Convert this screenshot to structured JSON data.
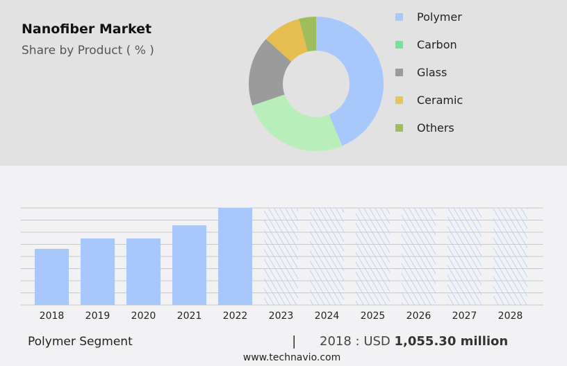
{
  "header": {
    "title": "Nanofiber Market",
    "subtitle": "Share by Product ( % )"
  },
  "footer": {
    "segment": "Polymer Segment",
    "separator": "|",
    "year_label": "2018 : USD",
    "value": "1,055.30 million",
    "website": "www.technavio.com"
  },
  "chart_data": [
    {
      "type": "pie",
      "variant": "donut",
      "title": "Nanofiber Market",
      "subtitle": "Share by Product ( % )",
      "legend": "right",
      "categories": [
        "Polymer",
        "Carbon",
        "Glass",
        "Ceramic",
        "Others"
      ],
      "values": [
        43.7,
        26.1,
        16.8,
        9.3,
        4.1
      ],
      "colors": [
        "#a8c8fc",
        "#b7eeb9",
        "#9b9b9b",
        "#e6bd50",
        "#9fbd5a"
      ],
      "legend_colors": [
        "#a8c8fc",
        "#70e59a",
        "#9b9b9b",
        "#e6c65a",
        "#9fbd5a"
      ]
    },
    {
      "type": "bar",
      "categories": [
        "2018",
        "2019",
        "2020",
        "2021",
        "2022",
        "2023",
        "2024",
        "2025",
        "2026",
        "2027",
        "2028"
      ],
      "values": [
        1055.3,
        1251,
        1251,
        1498,
        1824,
        null,
        null,
        null,
        null,
        null,
        null
      ],
      "forecast": [
        false,
        false,
        false,
        false,
        false,
        true,
        true,
        true,
        true,
        true,
        true
      ],
      "ylim": [
        0,
        1824
      ],
      "grid": true,
      "color": "#a8c8fc",
      "xlabel": "",
      "ylabel": ""
    }
  ]
}
